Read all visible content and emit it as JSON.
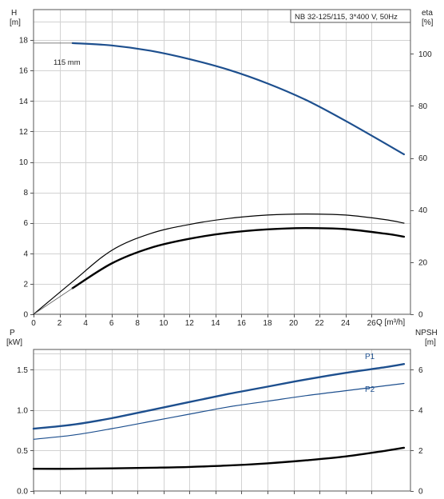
{
  "chart_data": [
    {
      "type": "line",
      "title": "NB 32-125/115, 3*400 V, 50Hz",
      "xlabel": "Q [m³/h]",
      "ylabel_left_name": "H",
      "ylabel_left_unit": "[m]",
      "ylabel_right_name": "eta",
      "ylabel_right_unit": "[%]",
      "xlim": [
        0,
        29
      ],
      "ylim_left": [
        0,
        20
      ],
      "ylim_right": [
        0,
        117
      ],
      "x_ticks": [
        0,
        2,
        4,
        6,
        8,
        10,
        12,
        14,
        16,
        18,
        20,
        22,
        24,
        26
      ],
      "y_ticks_left": [
        0,
        2,
        4,
        6,
        8,
        10,
        12,
        14,
        16,
        18
      ],
      "y_ticks_right": [
        0,
        20,
        40,
        60,
        80,
        100
      ],
      "grid": true,
      "series": [
        {
          "name": "",
          "label": "115 mm",
          "axis": "left",
          "color": "#1d4f8e",
          "x": [
            3,
            6,
            9,
            12,
            15,
            18,
            21,
            24,
            28.5
          ],
          "y": [
            17.8,
            17.65,
            17.3,
            16.75,
            16.05,
            15.15,
            14.05,
            12.7,
            10.5
          ]
        },
        {
          "name": "",
          "axis": "right",
          "color": "#000000",
          "role": "thin",
          "x": [
            0,
            3,
            6,
            9,
            12,
            15,
            18,
            21,
            24,
            27,
            28.5
          ],
          "y": [
            0,
            12.5,
            24.5,
            31,
            34.5,
            36.8,
            38.1,
            38.5,
            38.1,
            36.4,
            35
          ]
        },
        {
          "name": "",
          "axis": "right",
          "color": "#000000",
          "role": "thick",
          "x": [
            3,
            6,
            9,
            12,
            15,
            18,
            21,
            24,
            27,
            28.5
          ],
          "y": [
            10,
            19.5,
            25.5,
            29,
            31.3,
            32.6,
            33.1,
            32.7,
            31,
            29.8
          ]
        }
      ]
    },
    {
      "type": "line",
      "ylabel_left_name": "P",
      "ylabel_left_unit": "[kW]",
      "ylabel_right_name": "NPSH",
      "ylabel_right_unit": "[m]",
      "xlim": [
        0,
        29
      ],
      "ylim_left": [
        0,
        1.75
      ],
      "ylim_right": [
        0,
        7
      ],
      "y_ticks_left": [
        "0.0",
        "0.5",
        "1.0",
        "1.5"
      ],
      "y_ticks_right": [
        0,
        2,
        4,
        6
      ],
      "grid": true,
      "series": [
        {
          "name": "P1",
          "axis": "left",
          "color": "#1d4f8e",
          "role": "thick",
          "x": [
            0,
            3,
            6,
            9,
            12,
            15,
            18,
            21,
            24,
            27,
            28.5
          ],
          "y": [
            0.77,
            0.82,
            0.9,
            1.0,
            1.1,
            1.2,
            1.29,
            1.38,
            1.46,
            1.53,
            1.57
          ]
        },
        {
          "name": "P2",
          "axis": "left",
          "color": "#1d4f8e",
          "role": "thin",
          "x": [
            0,
            3,
            6,
            9,
            12,
            15,
            18,
            21,
            24,
            27,
            28.5
          ],
          "y": [
            0.64,
            0.69,
            0.77,
            0.86,
            0.95,
            1.04,
            1.11,
            1.18,
            1.24,
            1.3,
            1.33
          ]
        },
        {
          "name": "",
          "axis": "right",
          "color": "#000000",
          "role": "thick",
          "x": [
            0,
            3,
            6,
            9,
            12,
            15,
            18,
            21,
            24,
            27,
            28.5
          ],
          "y": [
            1.1,
            1.1,
            1.12,
            1.15,
            1.19,
            1.26,
            1.37,
            1.52,
            1.71,
            1.98,
            2.14
          ]
        }
      ]
    }
  ]
}
